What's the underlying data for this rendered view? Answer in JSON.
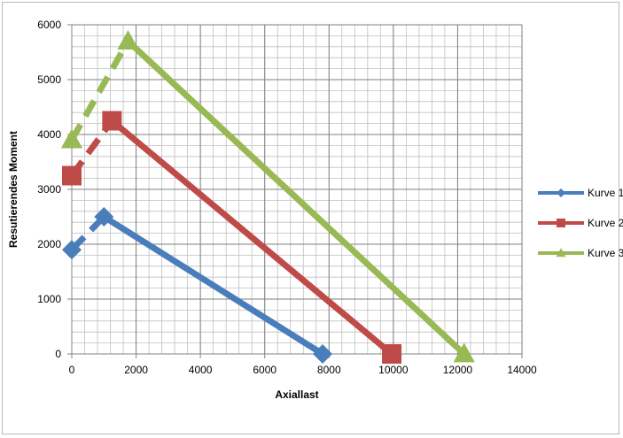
{
  "chart_data": {
    "type": "line",
    "title": "",
    "xlabel": "Axiallast",
    "ylabel": "Resutierendes Moment",
    "xlim": [
      0,
      14000
    ],
    "ylim": [
      0,
      6000
    ],
    "x_ticks": [
      0,
      2000,
      4000,
      6000,
      8000,
      10000,
      12000,
      14000
    ],
    "y_ticks": [
      0,
      1000,
      2000,
      3000,
      4000,
      5000,
      6000
    ],
    "x_tick_labels": [
      "0",
      "2000",
      "4000",
      "6000",
      "8000",
      "10000",
      "12000",
      "14000"
    ],
    "y_tick_labels": [
      "0",
      "1000",
      "2000",
      "3000",
      "4000",
      "5000",
      "6000"
    ],
    "grid": true,
    "minor_grid": true,
    "legend_position": "right",
    "series": [
      {
        "name": "Kurve 1",
        "color": "#4a7ebb",
        "marker": "diamond",
        "points": [
          [
            0,
            1900
          ],
          [
            1000,
            2500
          ],
          [
            7800,
            0
          ]
        ],
        "dashed_segments": [
          0
        ]
      },
      {
        "name": "Kurve 2",
        "color": "#be4b48",
        "marker": "square",
        "points": [
          [
            0,
            3250
          ],
          [
            1250,
            4250
          ],
          [
            9950,
            0
          ]
        ],
        "dashed_segments": [
          0
        ]
      },
      {
        "name": "Kurve 3",
        "color": "#98b954",
        "marker": "triangle",
        "points": [
          [
            0,
            3900
          ],
          [
            1750,
            5700
          ],
          [
            12200,
            0
          ]
        ],
        "dashed_segments": [
          0
        ]
      }
    ]
  }
}
